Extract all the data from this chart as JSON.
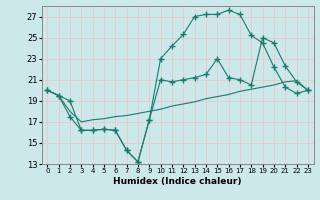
{
  "xlabel": "Humidex (Indice chaleur)",
  "bg_color": "#cce8ea",
  "grid_color": "#e8c8c8",
  "line_color": "#1a7a6e",
  "xlim": [
    -0.5,
    23.5
  ],
  "ylim": [
    13,
    28
  ],
  "yticks": [
    13,
    15,
    17,
    19,
    21,
    23,
    25,
    27
  ],
  "xticks": [
    0,
    1,
    2,
    3,
    4,
    5,
    6,
    7,
    8,
    9,
    10,
    11,
    12,
    13,
    14,
    15,
    16,
    17,
    18,
    19,
    20,
    21,
    22,
    23
  ],
  "line1_x": [
    0,
    1,
    2,
    3,
    4,
    5,
    6,
    7,
    8,
    9,
    10,
    11,
    12,
    13,
    14,
    15,
    16,
    17,
    18,
    19,
    20,
    21,
    22,
    23
  ],
  "line1_y": [
    20.0,
    19.5,
    17.5,
    16.2,
    16.2,
    16.3,
    16.2,
    14.3,
    13.2,
    17.2,
    23.0,
    24.2,
    25.3,
    27.0,
    27.2,
    27.2,
    27.6,
    27.2,
    25.2,
    24.5,
    22.2,
    20.3,
    19.7,
    20.0
  ],
  "line2_x": [
    0,
    1,
    2,
    3,
    4,
    5,
    6,
    7,
    8,
    9,
    10,
    11,
    12,
    13,
    14,
    15,
    16,
    17,
    18,
    19,
    20,
    21,
    22,
    23
  ],
  "line2_y": [
    20.0,
    19.5,
    19.0,
    16.2,
    16.2,
    16.3,
    16.2,
    14.3,
    13.2,
    17.2,
    21.0,
    20.8,
    21.0,
    21.2,
    21.5,
    23.0,
    21.2,
    21.0,
    20.5,
    25.0,
    24.5,
    22.3,
    20.8,
    20.0
  ],
  "line3_x": [
    0,
    1,
    2,
    3,
    4,
    5,
    6,
    7,
    8,
    9,
    10,
    11,
    12,
    13,
    14,
    15,
    16,
    17,
    18,
    19,
    20,
    21,
    22,
    23
  ],
  "line3_y": [
    20.0,
    19.5,
    18.0,
    17.0,
    17.2,
    17.3,
    17.5,
    17.6,
    17.8,
    18.0,
    18.2,
    18.5,
    18.7,
    18.9,
    19.2,
    19.4,
    19.6,
    19.9,
    20.1,
    20.3,
    20.5,
    20.8,
    20.9,
    20.0
  ]
}
